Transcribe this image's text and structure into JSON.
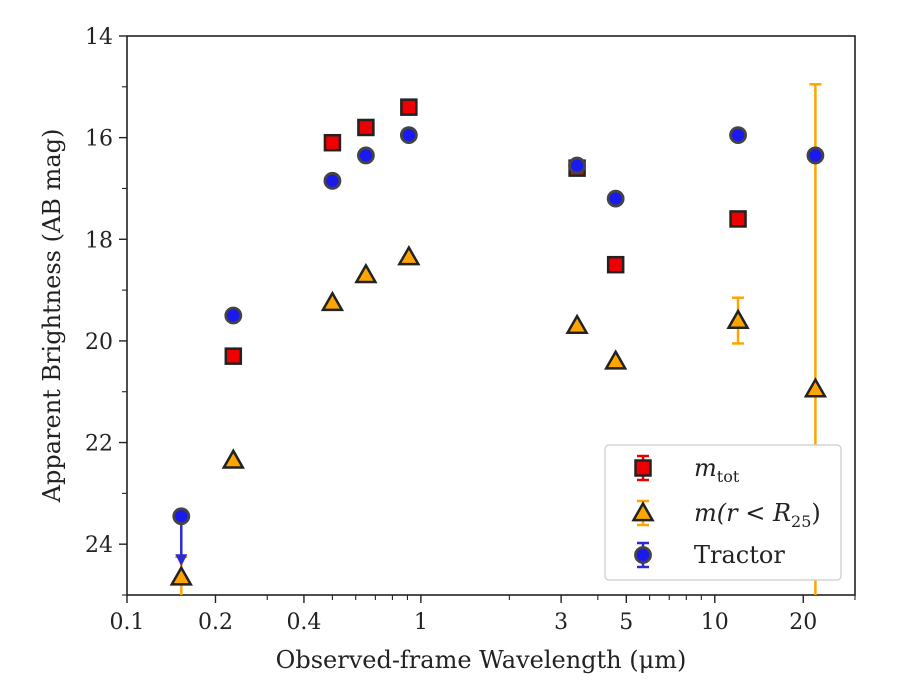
{
  "chart_data": {
    "type": "scatter",
    "title": "",
    "xlabel": "Observed-frame Wavelength (μm)",
    "ylabel": "Apparent Brightness (AB mag)",
    "xscale": "log",
    "xlim": [
      0.1,
      30
    ],
    "ylim": [
      25,
      14
    ],
    "y_inverted": true,
    "xticks": [
      0.1,
      0.2,
      0.4,
      1,
      3,
      5,
      10,
      20
    ],
    "xtick_labels": [
      "0.1",
      "0.2",
      "0.4",
      "1",
      "3",
      "5",
      "10",
      "20"
    ],
    "yticks": [
      14,
      16,
      18,
      20,
      22,
      24
    ],
    "ytick_labels": [
      "14",
      "16",
      "18",
      "20",
      "22",
      "24"
    ],
    "grid": false,
    "legend_position": "bottom-right",
    "series": [
      {
        "name": "m_tot",
        "marker": "square",
        "color": "#ee0000",
        "points": [
          {
            "x": 0.23,
            "y": 20.3
          },
          {
            "x": 0.5,
            "y": 16.1
          },
          {
            "x": 0.65,
            "y": 15.8
          },
          {
            "x": 0.91,
            "y": 15.4
          },
          {
            "x": 3.4,
            "y": 16.6
          },
          {
            "x": 4.6,
            "y": 18.5
          },
          {
            "x": 12.0,
            "y": 17.6
          }
        ]
      },
      {
        "name": "m(r < R25)",
        "marker": "triangle",
        "color": "#ffa500",
        "points": [
          {
            "x": 0.153,
            "y": 24.65,
            "err_low": 0.4,
            "err_high": 0.4
          },
          {
            "x": 0.23,
            "y": 22.35
          },
          {
            "x": 0.5,
            "y": 19.25
          },
          {
            "x": 0.65,
            "y": 18.7
          },
          {
            "x": 0.91,
            "y": 18.35
          },
          {
            "x": 3.4,
            "y": 19.7
          },
          {
            "x": 4.6,
            "y": 20.4
          },
          {
            "x": 12.0,
            "y": 19.6,
            "err_low": 0.45,
            "err_high": 0.45
          },
          {
            "x": 22.0,
            "y": 20.95,
            "err_low": 6.0,
            "err_high": 6.0
          }
        ]
      },
      {
        "name": "Tractor",
        "marker": "circle",
        "color": "#1a1aee",
        "points": [
          {
            "x": 0.153,
            "y": 23.45,
            "upper_limit": true
          },
          {
            "x": 0.23,
            "y": 19.5
          },
          {
            "x": 0.5,
            "y": 16.85
          },
          {
            "x": 0.65,
            "y": 16.35
          },
          {
            "x": 0.91,
            "y": 15.95
          },
          {
            "x": 3.4,
            "y": 16.55
          },
          {
            "x": 4.6,
            "y": 17.2
          },
          {
            "x": 12.0,
            "y": 15.95
          },
          {
            "x": 22.0,
            "y": 16.35
          }
        ]
      }
    ],
    "legend": {
      "entries": [
        {
          "label_main": "m",
          "label_sub": "tot",
          "label_suffix": ""
        },
        {
          "label_main": "m(r < R",
          "label_sub": "25",
          "label_suffix": ")"
        },
        {
          "label_main": "Tractor",
          "label_sub": "",
          "label_suffix": ""
        }
      ]
    }
  }
}
